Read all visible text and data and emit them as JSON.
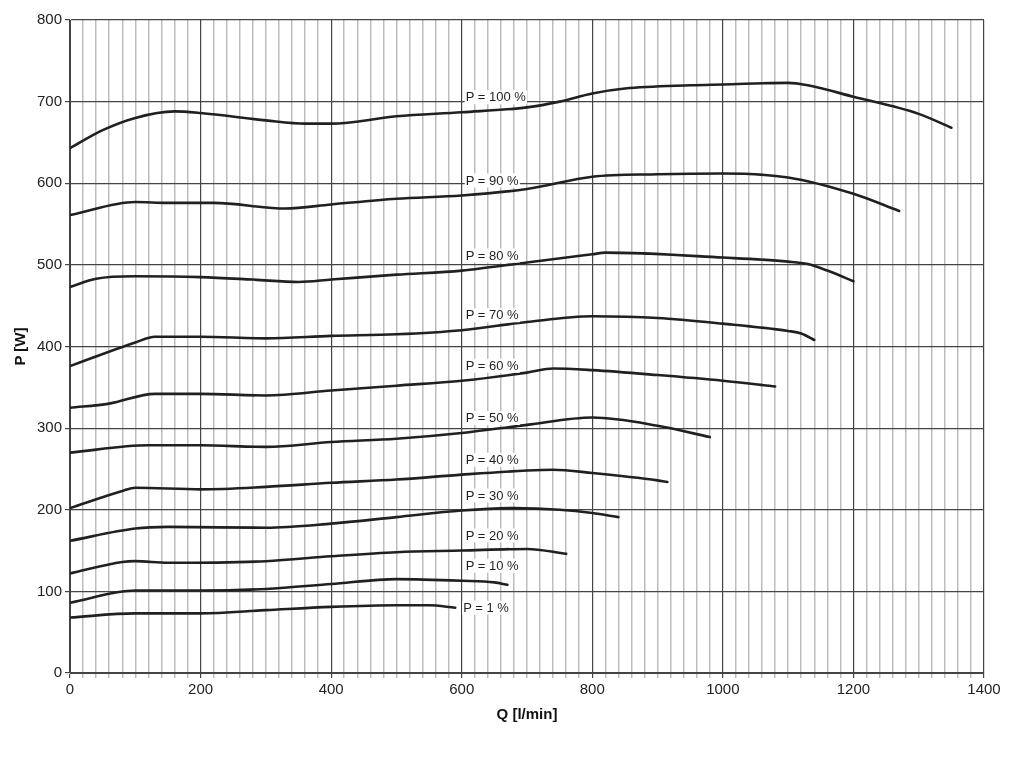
{
  "chart_data": {
    "type": "line",
    "xlabel": "Q [l/min]",
    "ylabel": "P [W]",
    "xlim": [
      0,
      1400
    ],
    "ylim": [
      0,
      800
    ],
    "xticks": [
      0,
      {
        "value": 20,
        "label": null
      },
      {
        "value": 40,
        "label": null
      },
      {
        "value": 60,
        "label": null
      },
      {
        "value": 80,
        "label": null
      },
      {
        "value": 100,
        "label": null
      },
      {
        "value": 120,
        "label": null
      },
      {
        "value": 140,
        "label": null
      },
      {
        "value": 160,
        "label": null
      },
      {
        "value": 180,
        "label": null
      },
      200,
      {
        "value": 220,
        "label": null
      },
      {
        "value": 240,
        "label": null
      },
      {
        "value": 260,
        "label": null
      },
      {
        "value": 280,
        "label": null
      },
      {
        "value": 300,
        "label": null
      },
      {
        "value": 320,
        "label": null
      },
      {
        "value": 340,
        "label": null
      },
      {
        "value": 360,
        "label": null
      },
      {
        "value": 380,
        "label": null
      },
      400,
      {
        "value": 420,
        "label": null
      },
      {
        "value": 440,
        "label": null
      },
      {
        "value": 460,
        "label": null
      },
      {
        "value": 480,
        "label": null
      },
      {
        "value": 500,
        "label": null
      },
      {
        "value": 520,
        "label": null
      },
      {
        "value": 540,
        "label": null
      },
      {
        "value": 560,
        "label": null
      },
      {
        "value": 580,
        "label": null
      },
      600,
      {
        "value": 620,
        "label": null
      },
      {
        "value": 640,
        "label": null
      },
      {
        "value": 660,
        "label": null
      },
      {
        "value": 680,
        "label": null
      },
      {
        "value": 700,
        "label": null
      },
      {
        "value": 720,
        "label": null
      },
      {
        "value": 740,
        "label": null
      },
      {
        "value": 760,
        "label": null
      },
      {
        "value": 780,
        "label": null
      },
      800,
      {
        "value": 820,
        "label": null
      },
      {
        "value": 840,
        "label": null
      },
      {
        "value": 860,
        "label": null
      },
      {
        "value": 880,
        "label": null
      },
      {
        "value": 900,
        "label": null
      },
      {
        "value": 920,
        "label": null
      },
      {
        "value": 940,
        "label": null
      },
      {
        "value": 960,
        "label": null
      },
      {
        "value": 980,
        "label": null
      },
      1000,
      {
        "value": 1020,
        "label": null
      },
      {
        "value": 1040,
        "label": null
      },
      {
        "value": 1060,
        "label": null
      },
      {
        "value": 1080,
        "label": null
      },
      {
        "value": 1100,
        "label": null
      },
      {
        "value": 1120,
        "label": null
      },
      {
        "value": 1140,
        "label": null
      },
      {
        "value": 1160,
        "label": null
      },
      {
        "value": 1180,
        "label": null
      },
      1200,
      {
        "value": 1220,
        "label": null
      },
      {
        "value": 1240,
        "label": null
      },
      {
        "value": 1260,
        "label": null
      },
      {
        "value": 1280,
        "label": null
      },
      {
        "value": 1300,
        "label": null
      },
      {
        "value": 1320,
        "label": null
      },
      {
        "value": 1340,
        "label": null
      },
      {
        "value": 1360,
        "label": null
      },
      {
        "value": 1380,
        "label": null
      },
      1400
    ],
    "yticks": [
      0,
      100,
      200,
      300,
      400,
      500,
      600,
      700,
      800
    ],
    "grid": true,
    "legend": false,
    "marker": "none",
    "line_style": "solid",
    "series": [
      {
        "name": "P = 100 %",
        "color": "#231f20",
        "x": [
          0,
          50,
          100,
          160,
          200,
          300,
          360,
          400,
          500,
          600,
          700,
          750,
          800,
          850,
          950,
          1000,
          1100,
          1130,
          1200,
          1300,
          1350
        ],
        "values": [
          643,
          665,
          680,
          688,
          686,
          677,
          673,
          673,
          682,
          687,
          693,
          700,
          710,
          716,
          720,
          721,
          723,
          720,
          706,
          685,
          668
        ]
      },
      {
        "name": "P = 90 %",
        "color": "#231f20",
        "x": [
          0,
          100,
          150,
          220,
          330,
          400,
          500,
          600,
          700,
          800,
          900,
          1000,
          1100,
          1200,
          1270
        ],
        "values": [
          561,
          577,
          576,
          576,
          569,
          574,
          581,
          585,
          593,
          608,
          611,
          612,
          607,
          587,
          566
        ]
      },
      {
        "name": "P = 80 %",
        "color": "#231f20",
        "x": [
          0,
          40,
          100,
          200,
          280,
          350,
          400,
          500,
          600,
          700,
          800,
          820,
          1000,
          1100,
          1130,
          1160,
          1200
        ],
        "values": [
          473,
          483,
          486,
          485,
          482,
          479,
          482,
          488,
          493,
          503,
          513,
          515,
          509,
          504,
          501,
          493,
          480
        ]
      },
      {
        "name": "P = 70 %",
        "color": "#231f20",
        "x": [
          0,
          100,
          130,
          200,
          300,
          400,
          500,
          600,
          700,
          800,
          900,
          1000,
          1100,
          1120,
          1140
        ],
        "values": [
          376,
          405,
          412,
          412,
          410,
          413,
          415,
          420,
          430,
          437,
          435,
          428,
          419,
          416,
          408
        ]
      },
      {
        "name": "P = 60 %",
        "color": "#231f20",
        "x": [
          0,
          60,
          130,
          200,
          300,
          400,
          500,
          600,
          700,
          740,
          800,
          900,
          1000,
          1080
        ],
        "values": [
          325,
          330,
          342,
          342,
          340,
          346,
          352,
          358,
          368,
          373,
          371,
          365,
          358,
          351
        ]
      },
      {
        "name": "P = 50 %",
        "color": "#231f20",
        "x": [
          0,
          120,
          200,
          300,
          400,
          500,
          600,
          700,
          800,
          900,
          980
        ],
        "values": [
          270,
          279,
          279,
          277,
          283,
          287,
          294,
          304,
          313,
          303,
          289
        ]
      },
      {
        "name": "P = 40 %",
        "color": "#231f20",
        "x": [
          0,
          80,
          100,
          200,
          300,
          400,
          500,
          600,
          700,
          740,
          800,
          900,
          915
        ],
        "values": [
          202,
          223,
          227,
          225,
          228,
          233,
          237,
          243,
          248,
          249,
          245,
          236,
          234
        ]
      },
      {
        "name": "P = 30 %",
        "color": "#231f20",
        "x": [
          0,
          100,
          150,
          300,
          400,
          500,
          600,
          680,
          750,
          800,
          840
        ],
        "values": [
          162,
          177,
          179,
          178,
          183,
          191,
          199,
          202,
          200,
          196,
          191
        ]
      },
      {
        "name": "P = 20 %",
        "color": "#231f20",
        "x": [
          0,
          80,
          100,
          150,
          300,
          400,
          500,
          600,
          700,
          760
        ],
        "values": [
          122,
          136,
          137,
          135,
          137,
          143,
          148,
          150,
          152,
          146
        ]
      },
      {
        "name": "P = 10 %",
        "color": "#231f20",
        "x": [
          0,
          100,
          200,
          300,
          400,
          500,
          600,
          650,
          670
        ],
        "values": [
          86,
          101,
          101,
          103,
          109,
          115,
          113,
          111,
          108
        ]
      },
      {
        "name": "P = 1 %",
        "color": "#231f20",
        "x": [
          0,
          100,
          200,
          300,
          400,
          500,
          550,
          590
        ],
        "values": [
          68,
          73,
          73,
          77,
          81,
          83,
          83,
          80
        ]
      }
    ]
  }
}
